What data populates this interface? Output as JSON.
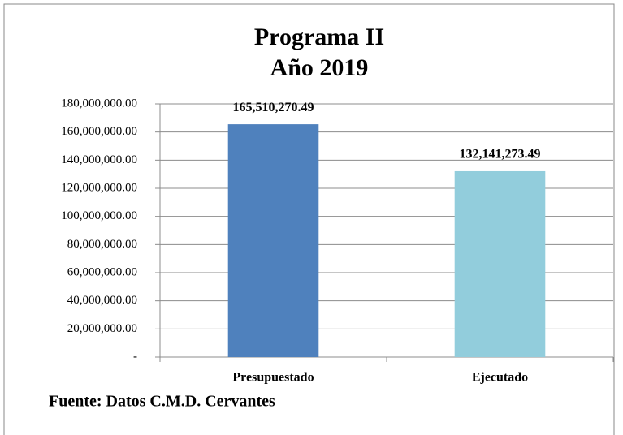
{
  "chart_data": {
    "type": "bar",
    "title": [
      "Programa II",
      "Año 2019"
    ],
    "categories": [
      "Presupuestado",
      "Ejecutado"
    ],
    "values": [
      165510270.49,
      132141273.49
    ],
    "value_labels": [
      "165,510,270.49",
      "132,141,273.49"
    ],
    "colors": [
      "#4f81bd",
      "#92cddc"
    ],
    "ylim": [
      0,
      180000000
    ],
    "yticks": [
      {
        "value": 0,
        "label": "-"
      },
      {
        "value": 20000000,
        "label": "20,000,000.00"
      },
      {
        "value": 40000000,
        "label": "40,000,000.00"
      },
      {
        "value": 60000000,
        "label": "60,000,000.00"
      },
      {
        "value": 80000000,
        "label": "80,000,000.00"
      },
      {
        "value": 100000000,
        "label": "100,000,000.00"
      },
      {
        "value": 120000000,
        "label": "120,000,000.00"
      },
      {
        "value": 140000000,
        "label": "140,000,000.00"
      },
      {
        "value": 160000000,
        "label": "160,000,000.00"
      },
      {
        "value": 180000000,
        "label": "180,000,000.00"
      }
    ],
    "grid": true,
    "source": "Fuente: Datos C.M.D. Cervantes"
  }
}
